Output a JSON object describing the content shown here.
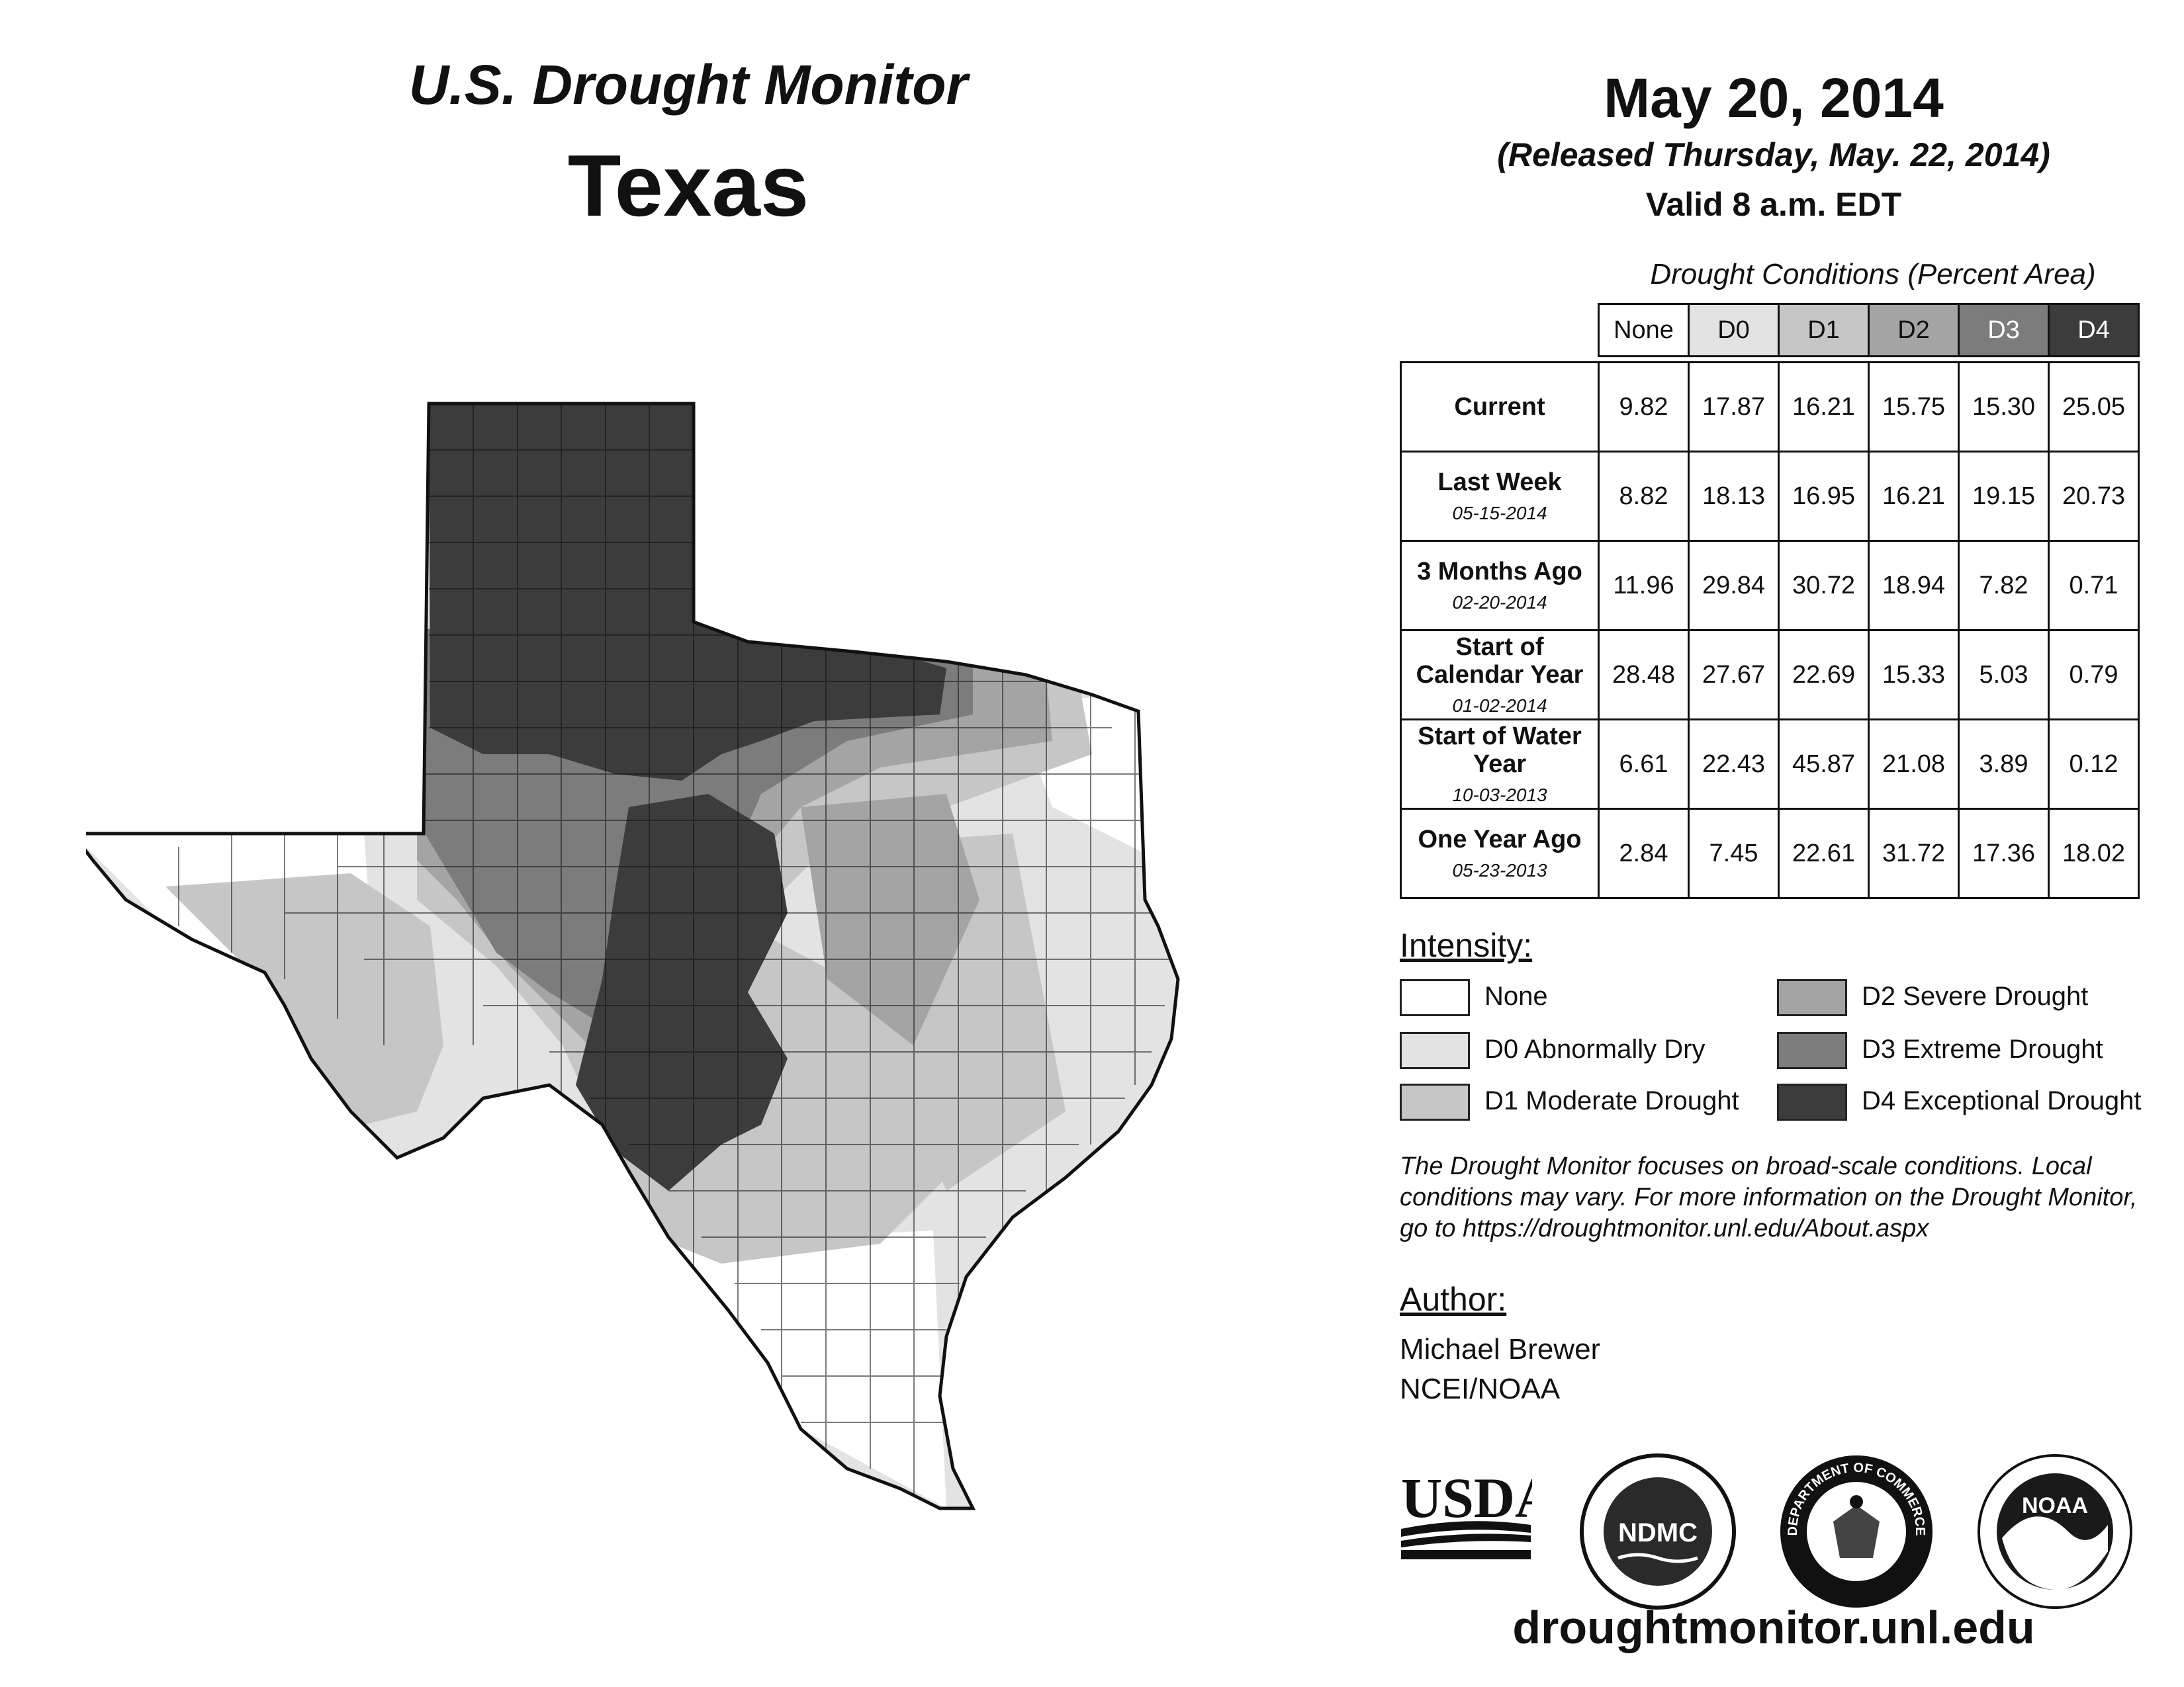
{
  "header": {
    "product": "U.S. Drought Monitor",
    "state": "Texas",
    "date": "May 20, 2014",
    "released": "(Released Thursday, May. 22, 2014)",
    "valid": "Valid 8 a.m. EDT"
  },
  "table": {
    "title": "Drought Conditions (Percent Area)",
    "columns": [
      "None",
      "D0",
      "D1",
      "D2",
      "D3",
      "D4"
    ],
    "rows": [
      {
        "label": "Current",
        "date": "",
        "values": [
          "9.82",
          "17.87",
          "16.21",
          "15.75",
          "15.30",
          "25.05"
        ]
      },
      {
        "label": "Last Week",
        "date": "05-15-2014",
        "values": [
          "8.82",
          "18.13",
          "16.95",
          "16.21",
          "19.15",
          "20.73"
        ]
      },
      {
        "label": "3 Months Ago",
        "date": "02-20-2014",
        "values": [
          "11.96",
          "29.84",
          "30.72",
          "18.94",
          "7.82",
          "0.71"
        ]
      },
      {
        "label": "Start of Calendar Year",
        "date": "01-02-2014",
        "values": [
          "28.48",
          "27.67",
          "22.69",
          "15.33",
          "5.03",
          "0.79"
        ]
      },
      {
        "label": "Start of Water Year",
        "date": "10-03-2013",
        "values": [
          "6.61",
          "22.43",
          "45.87",
          "21.08",
          "3.89",
          "0.12"
        ]
      },
      {
        "label": "One Year Ago",
        "date": "05-23-2013",
        "values": [
          "2.84",
          "7.45",
          "22.61",
          "31.72",
          "17.36",
          "18.02"
        ]
      }
    ]
  },
  "legend": {
    "title": "Intensity:",
    "items": [
      {
        "label": "None",
        "color": "#ffffff"
      },
      {
        "label": "D0 Abnormally Dry",
        "color": "#e3e3e3"
      },
      {
        "label": "D1 Moderate Drought",
        "color": "#c6c6c6"
      },
      {
        "label": "D2 Severe Drought",
        "color": "#a4a4a4"
      },
      {
        "label": "D3 Extreme Drought",
        "color": "#7c7c7c"
      },
      {
        "label": "D4 Exceptional Drought",
        "color": "#3c3c3c"
      }
    ]
  },
  "note": "The Drought Monitor focuses on broad-scale conditions. Local conditions may vary. For more information on the Drought Monitor, go to https://droughtmonitor.unl.edu/About.aspx",
  "author": {
    "title": "Author:",
    "name": "Michael Brewer",
    "org": "NCEI/NOAA"
  },
  "logos": [
    {
      "name": "usda-logo",
      "text": "USDA"
    },
    {
      "name": "ndmc-logo",
      "text": "NDMC"
    },
    {
      "name": "commerce-seal",
      "text": "DEPARTMENT OF COMMERCE"
    },
    {
      "name": "noaa-logo",
      "text": "NOAA"
    }
  ],
  "footer": {
    "url": "droughtmonitor.unl.edu"
  }
}
